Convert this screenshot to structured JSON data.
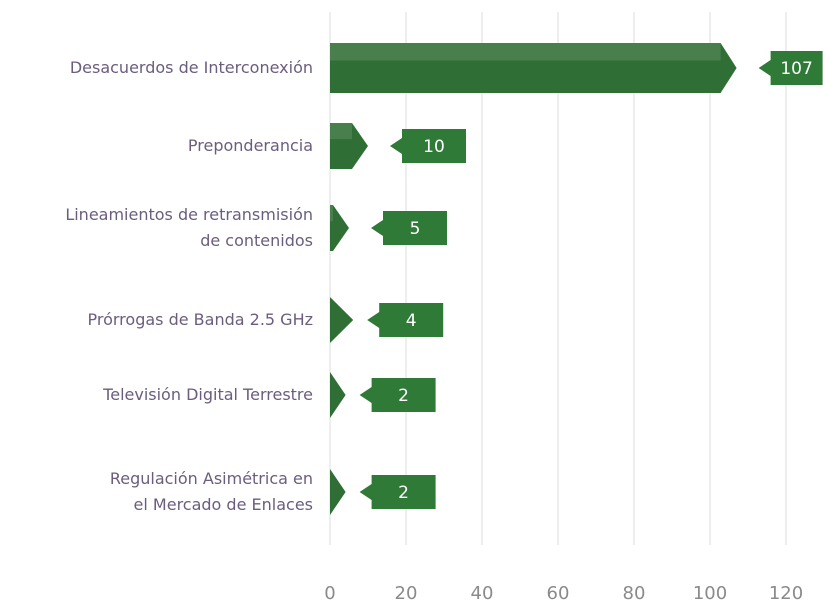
{
  "chart_data": {
    "type": "bar",
    "orientation": "horizontal",
    "categories": [
      "Desacuerdos de Interconexión",
      "Preponderancia",
      "Lineamientos de retransmisión\nde contenidos",
      "Prórrogas de Banda 2.5 GHz",
      "Televisión Digital Terrestre",
      "Regulación Asimétrica en\nel Mercado de Enlaces"
    ],
    "values": [
      107,
      10,
      5,
      4,
      2,
      2
    ],
    "color": "#2f6e35",
    "xlim": [
      0,
      120
    ],
    "xticks": [
      0,
      20,
      40,
      60,
      80,
      100,
      120
    ],
    "grid": true
  }
}
